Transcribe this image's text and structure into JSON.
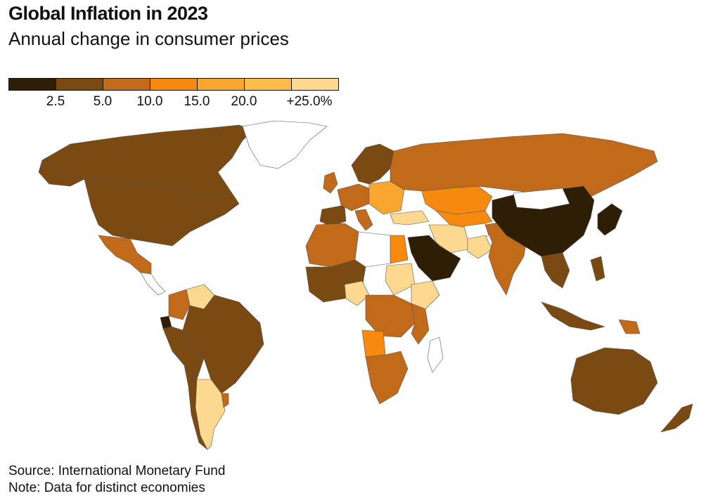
{
  "header": {
    "title": "Global Inflation in 2023",
    "subtitle": "Annual change in consumer prices"
  },
  "legend": {
    "colors": [
      "#2e1e06",
      "#7a4a12",
      "#c06a1a",
      "#f7890f",
      "#f9a62e",
      "#fbbc4c",
      "#fcd98e"
    ],
    "ticks": [
      "2.5",
      "5.0",
      "10.0",
      "15.0",
      "20.0",
      "+25.0%"
    ]
  },
  "footer": {
    "source": "Source: International Monetary Fund",
    "note": "Note: Data for distinct economies"
  },
  "colors": {
    "nodata": "#ffffff",
    "lowest": "#2e1e06",
    "low": "#7a4a12",
    "mid": "#c06a1a",
    "high": "#f7890f",
    "veryhigh": "#f9a62e",
    "extreme": "#fcd98e"
  }
}
